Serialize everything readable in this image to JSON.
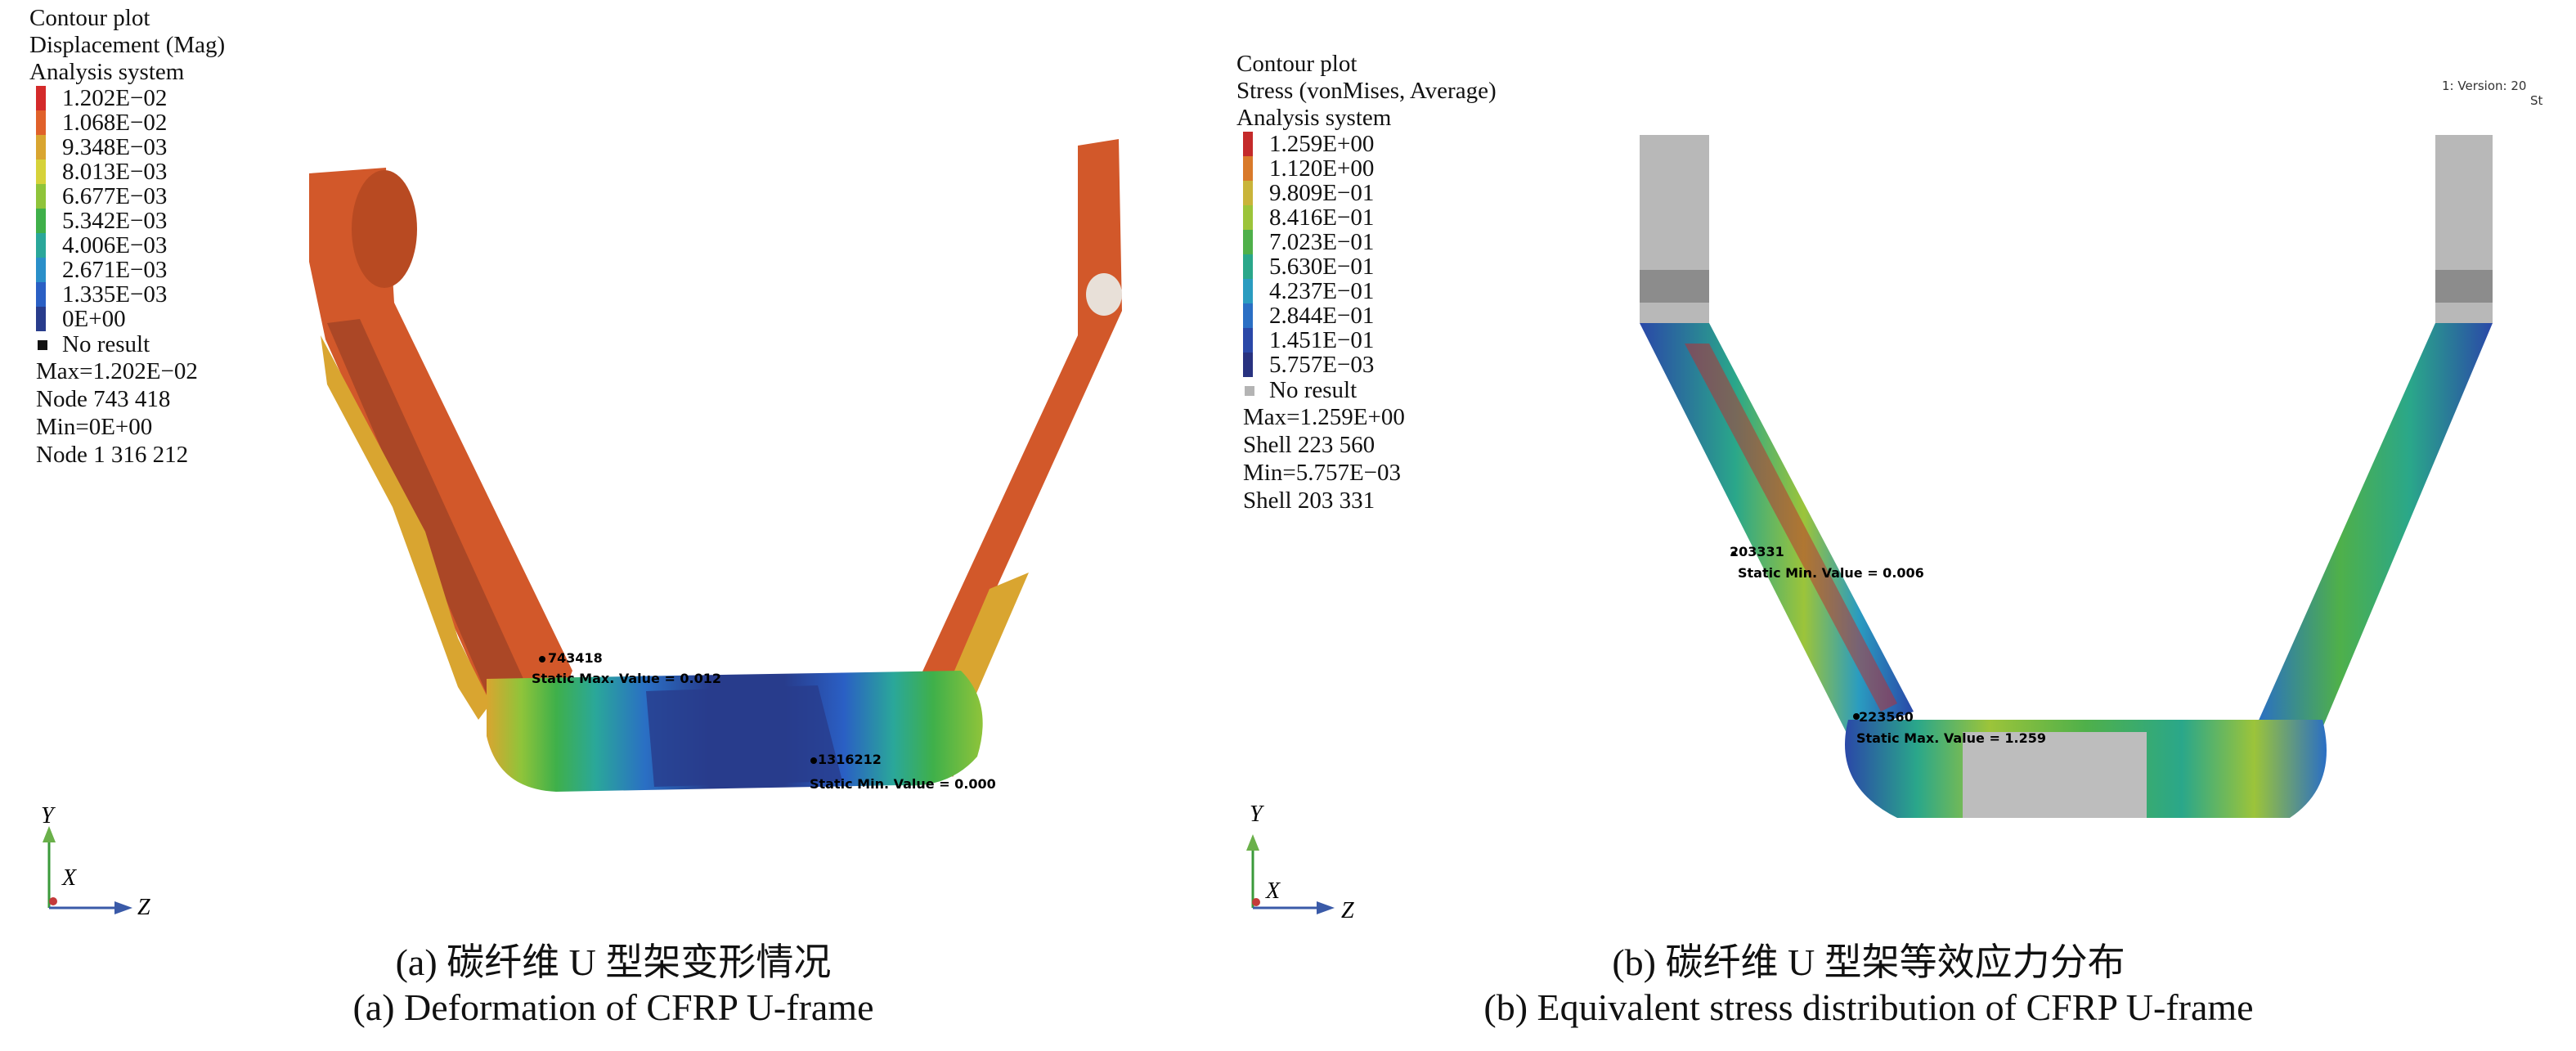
{
  "panel_a": {
    "legend": {
      "header": [
        "Contour plot",
        "Displacement (Mag)",
        "Analysis system"
      ],
      "scale": [
        {
          "label": "1.202E−02",
          "color": "#d42a2a"
        },
        {
          "label": "1.068E−02",
          "color": "#e0612a"
        },
        {
          "label": "9.348E−03",
          "color": "#d9a530"
        },
        {
          "label": "8.013E−03",
          "color": "#d6d23a"
        },
        {
          "label": "6.677E−03",
          "color": "#8fc43a"
        },
        {
          "label": "5.342E−03",
          "color": "#3fb04a"
        },
        {
          "label": "4.006E−03",
          "color": "#2aa79a"
        },
        {
          "label": "2.671E−03",
          "color": "#2a8fc9"
        },
        {
          "label": "1.335E−03",
          "color": "#2a5fc4"
        },
        {
          "label": "0E+00",
          "color": "#283c8c"
        }
      ],
      "no_result": "No result",
      "no_result_color": "#111111",
      "stats": [
        "Max=1.202E−02",
        "Node 743 418",
        "Min=0E+00",
        "Node 1 316 212"
      ]
    },
    "annotations": {
      "max_node": "743418",
      "max_value": "Static Max. Value = 0.012",
      "min_node": "1316212",
      "min_value": "Static Min. Value = 0.000"
    },
    "axes": {
      "y": "Y",
      "x": "X",
      "z": "Z"
    },
    "caption_zh": "(a) 碳纤维 U 型架变形情况",
    "caption_en": "(a) Deformation of CFRP U-frame"
  },
  "panel_b": {
    "legend": {
      "header": [
        "Contour plot",
        "Stress (vonMises, Average)",
        "Analysis system"
      ],
      "scale": [
        {
          "label": "1.259E+00",
          "color": "#c42a2a"
        },
        {
          "label": "1.120E+00",
          "color": "#d97a2a"
        },
        {
          "label": "9.809E−01",
          "color": "#c9b43a"
        },
        {
          "label": "8.416E−01",
          "color": "#9cc43a"
        },
        {
          "label": "7.023E−01",
          "color": "#4fb04a"
        },
        {
          "label": "5.630E−01",
          "color": "#2aa78a"
        },
        {
          "label": "4.237E−01",
          "color": "#2a9cc0"
        },
        {
          "label": "2.844E−01",
          "color": "#2a6fc4"
        },
        {
          "label": "1.451E−01",
          "color": "#2a48a8"
        },
        {
          "label": "5.757E−03",
          "color": "#283280"
        }
      ],
      "no_result": "No result",
      "no_result_color": "#b4b4b4",
      "stats": [
        "Max=1.259E+00",
        "Shell 223 560",
        "Min=5.757E−03",
        "Shell 203 331"
      ]
    },
    "annotations": {
      "min_node": "203331",
      "min_value": "Static Min. Value = 0.006",
      "max_node": "223560",
      "max_value": "Static Max. Value = 1.259"
    },
    "version": [
      "1: Version: 20",
      "St"
    ],
    "axes": {
      "y": "Y",
      "x": "X",
      "z": "Z"
    },
    "caption_zh": "(b) 碳纤维 U 型架等效应力分布",
    "caption_en": "(b) Equivalent stress distribution of CFRP U-frame"
  }
}
